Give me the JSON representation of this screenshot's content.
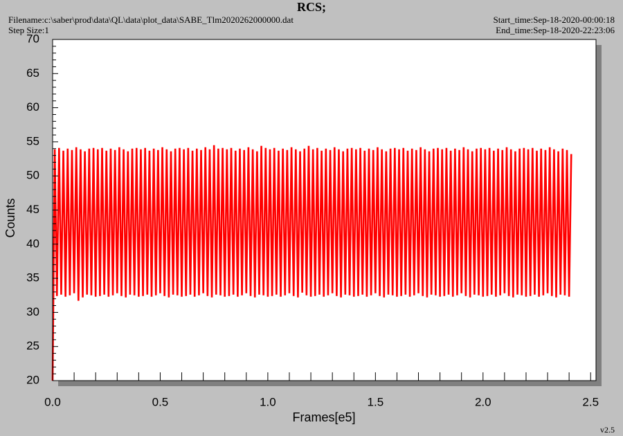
{
  "chart_data": {
    "type": "line",
    "title": "RCS;",
    "filename": "Filename:c:\\saber\\prod\\data\\QL\\data\\plot_data\\SABE_Tlm2020262000000.dat",
    "step_size": "Step Size:1",
    "start_time": "Start_time:Sep-18-2020-00:00:18",
    "end_time": "End_time:Sep-18-2020-22:23:06",
    "version": "v2.5",
    "xlabel": "Frames[e5]",
    "ylabel": "Counts",
    "color": "#ff0000",
    "xlim": [
      0,
      2.525
    ],
    "ylim": [
      20,
      70
    ],
    "xticks": [
      {
        "value": 0,
        "label": "0.0"
      },
      0.5,
      {
        "value": 1,
        "label": "1.0"
      },
      1.5,
      {
        "value": 2,
        "label": "2.0"
      },
      2.5
    ],
    "yticks": [
      20,
      25,
      30,
      35,
      40,
      45,
      50,
      55,
      60,
      65,
      70
    ],
    "x": [
      0,
      0.01,
      0.02,
      0.03,
      0.04,
      0.05,
      0.06,
      0.07,
      0.08,
      0.09,
      0.1,
      0.11,
      0.12,
      0.13,
      0.14,
      0.15,
      0.16,
      0.17,
      0.18,
      0.19,
      0.2,
      0.21,
      0.22,
      0.23,
      0.24,
      0.25,
      0.26,
      0.27,
      0.28,
      0.29,
      0.3,
      0.31,
      0.32,
      0.33,
      0.34,
      0.35,
      0.36,
      0.37,
      0.38,
      0.39,
      0.4,
      0.41,
      0.42,
      0.43,
      0.44,
      0.45,
      0.46,
      0.47,
      0.48,
      0.49,
      0.5,
      0.51,
      0.52,
      0.53,
      0.54,
      0.55,
      0.56,
      0.57,
      0.58,
      0.59,
      0.6,
      0.61,
      0.62,
      0.63,
      0.64,
      0.65,
      0.66,
      0.67,
      0.68,
      0.69,
      0.7,
      0.71,
      0.72,
      0.73,
      0.74,
      0.75,
      0.76,
      0.77,
      0.78,
      0.79,
      0.8,
      0.81,
      0.82,
      0.83,
      0.84,
      0.85,
      0.86,
      0.87,
      0.88,
      0.89,
      0.9,
      0.91,
      0.92,
      0.93,
      0.94,
      0.95,
      0.96,
      0.97,
      0.98,
      0.99,
      1,
      1.01,
      1.02,
      1.03,
      1.04,
      1.05,
      1.06,
      1.07,
      1.08,
      1.09,
      1.1,
      1.11,
      1.12,
      1.13,
      1.14,
      1.15,
      1.16,
      1.17,
      1.18,
      1.19,
      1.2,
      1.21,
      1.22,
      1.23,
      1.24,
      1.25,
      1.26,
      1.27,
      1.28,
      1.29,
      1.3,
      1.31,
      1.32,
      1.33,
      1.34,
      1.35,
      1.36,
      1.37,
      1.38,
      1.39,
      1.4,
      1.41,
      1.42,
      1.43,
      1.44,
      1.45,
      1.46,
      1.47,
      1.48,
      1.49,
      1.5,
      1.51,
      1.52,
      1.53,
      1.54,
      1.55,
      1.56,
      1.57,
      1.58,
      1.59,
      1.6,
      1.61,
      1.62,
      1.63,
      1.64,
      1.65,
      1.66,
      1.67,
      1.68,
      1.69,
      1.7,
      1.71,
      1.72,
      1.73,
      1.74,
      1.75,
      1.76,
      1.77,
      1.78,
      1.79,
      1.8,
      1.81,
      1.82,
      1.83,
      1.84,
      1.85,
      1.86,
      1.87,
      1.88,
      1.89,
      1.9,
      1.91,
      1.92,
      1.93,
      1.94,
      1.95,
      1.96,
      1.97,
      1.98,
      1.99,
      2,
      2.01,
      2.02,
      2.03,
      2.04,
      2.05,
      2.06,
      2.07,
      2.08,
      2.09,
      2.1,
      2.11,
      2.12,
      2.13,
      2.14,
      2.15,
      2.16,
      2.17,
      2.18,
      2.19,
      2.2,
      2.21,
      2.22,
      2.23,
      2.24,
      2.25,
      2.26,
      2.27,
      2.28,
      2.29,
      2.3,
      2.31,
      2.32,
      2.33,
      2.34,
      2.35,
      2.36,
      2.37,
      2.38,
      2.39,
      2.4,
      2.41
    ],
    "values": [
      20,
      53.9,
      32.4,
      54.1,
      32.6,
      53.7,
      32.3,
      54.0,
      32.5,
      53.8,
      32.8,
      54.2,
      31.7,
      53.9,
      32.2,
      53.6,
      32.6,
      54.0,
      32.5,
      54.1,
      32.3,
      53.9,
      32.4,
      54.1,
      32.6,
      53.7,
      32.3,
      54.0,
      32.5,
      53.8,
      32.8,
      54.2,
      32.4,
      53.9,
      32.2,
      53.6,
      32.6,
      54.0,
      32.5,
      54.1,
      32.3,
      53.9,
      32.4,
      54.1,
      32.6,
      53.7,
      32.3,
      54.0,
      32.5,
      53.8,
      32.8,
      54.2,
      32.4,
      53.9,
      32.2,
      53.6,
      32.6,
      54.0,
      32.5,
      54.1,
      32.3,
      53.9,
      32.4,
      54.1,
      32.6,
      53.7,
      32.3,
      54.0,
      32.5,
      53.8,
      32.8,
      54.2,
      32.4,
      53.9,
      32.2,
      54.5,
      32.6,
      54.0,
      32.5,
      54.1,
      32.3,
      53.9,
      32.4,
      54.1,
      32.6,
      53.7,
      32.3,
      54.0,
      32.5,
      53.8,
      32.8,
      54.2,
      32.4,
      53.9,
      32.2,
      53.6,
      32.6,
      54.4,
      32.5,
      54.1,
      32.3,
      53.9,
      32.4,
      54.1,
      32.6,
      53.7,
      32.3,
      54.0,
      32.5,
      53.8,
      32.8,
      54.2,
      32.4,
      53.9,
      32.2,
      53.6,
      32.9,
      54.0,
      32.5,
      54.4,
      32.3,
      53.9,
      32.4,
      54.1,
      32.6,
      53.7,
      32.3,
      54.0,
      32.5,
      53.8,
      32.8,
      54.2,
      32.4,
      53.9,
      32.2,
      53.6,
      32.6,
      54.0,
      32.5,
      54.1,
      32.3,
      53.9,
      32.4,
      54.1,
      32.6,
      53.7,
      32.3,
      54.0,
      32.5,
      53.8,
      32.8,
      54.2,
      32.4,
      53.9,
      32.2,
      53.6,
      32.6,
      54.0,
      32.5,
      54.1,
      32.3,
      53.9,
      32.4,
      54.1,
      32.6,
      53.7,
      32.3,
      54.0,
      32.5,
      53.8,
      32.8,
      54.2,
      32.4,
      53.9,
      32.2,
      53.6,
      32.6,
      54.0,
      32.5,
      54.1,
      32.3,
      53.9,
      32.4,
      54.1,
      32.6,
      53.7,
      32.3,
      54.0,
      32.5,
      53.8,
      32.8,
      54.2,
      32.4,
      53.9,
      32.2,
      53.6,
      32.6,
      54.0,
      32.5,
      54.1,
      32.3,
      53.9,
      32.4,
      54.1,
      32.6,
      53.7,
      32.3,
      54.0,
      32.5,
      53.8,
      32.8,
      54.2,
      32.4,
      53.9,
      32.2,
      53.6,
      32.6,
      54.0,
      32.5,
      54.1,
      32.3,
      53.9,
      32.4,
      54.1,
      32.6,
      53.7,
      32.3,
      54.0,
      32.5,
      53.8,
      32.8,
      54.2,
      32.4,
      53.9,
      32.2,
      53.6,
      32.6,
      54.0,
      32.5,
      53.8,
      32.3,
      53.2
    ]
  }
}
